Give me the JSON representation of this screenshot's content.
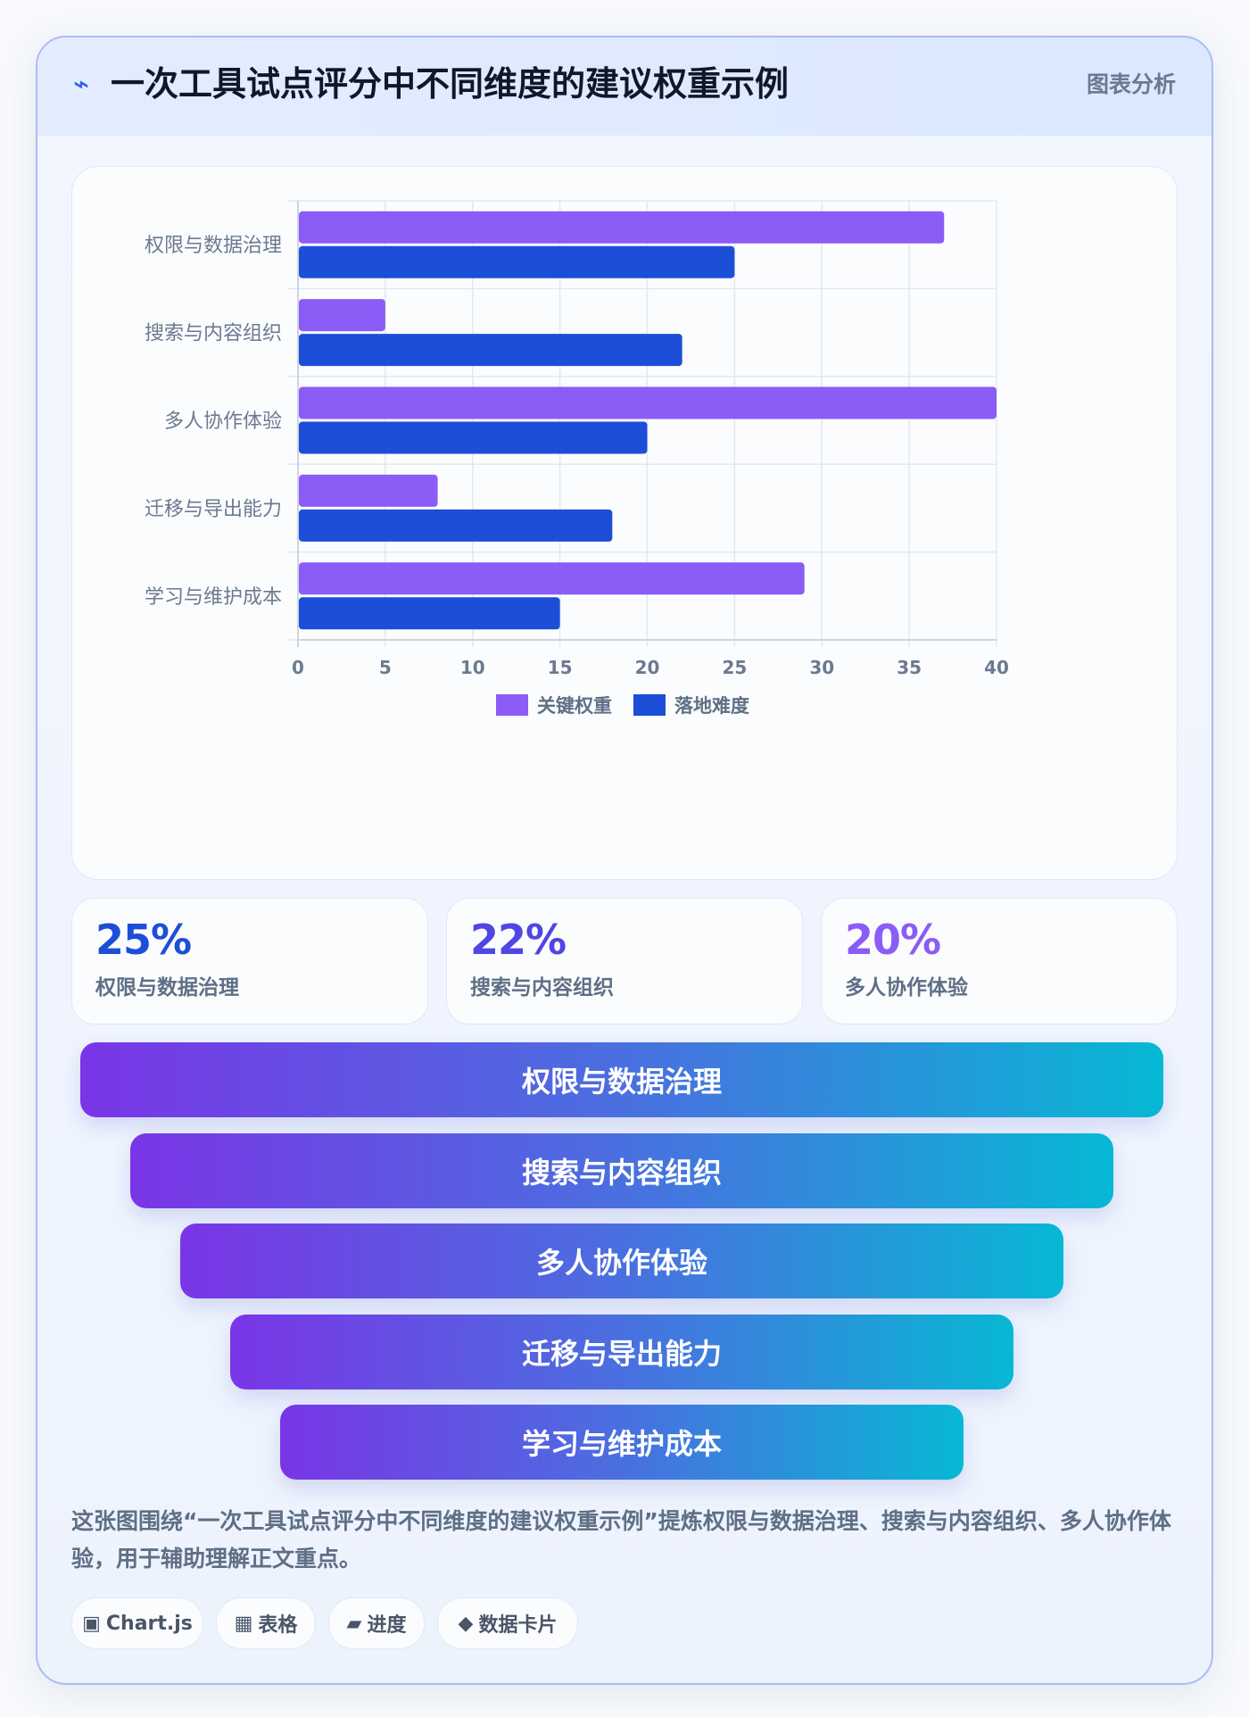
{
  "header": {
    "icon": "⌁",
    "title": "一次工具试点评分中不同维度的建议权重示例",
    "tag": "图表分析"
  },
  "chart_data": {
    "type": "bar",
    "orientation": "horizontal",
    "categories": [
      "权限与数据治理",
      "搜索与内容组织",
      "多人协作体验",
      "迁移与导出能力",
      "学习与维护成本"
    ],
    "series": [
      {
        "name": "关键权重",
        "values": [
          37,
          5,
          40,
          8,
          29
        ],
        "color": "#8b5cf6"
      },
      {
        "name": "落地难度",
        "values": [
          25,
          22,
          20,
          18,
          15
        ],
        "color": "#1d4ed8"
      }
    ],
    "xlim": [
      0,
      40
    ],
    "xticks": [
      0,
      5,
      10,
      15,
      20,
      25,
      30,
      35,
      40
    ],
    "grid": true,
    "legend": "bottom"
  },
  "stats": [
    {
      "value": "25%",
      "label": "权限与数据治理",
      "color": "#1d4ed8"
    },
    {
      "value": "22%",
      "label": "搜索与内容组织",
      "color": "#4f46e5"
    },
    {
      "value": "20%",
      "label": "多人协作体验",
      "color": "#8b5cf6"
    }
  ],
  "funnel": [
    "权限与数据治理",
    "搜索与内容组织",
    "多人协作体验",
    "迁移与导出能力",
    "学习与维护成本"
  ],
  "description": "这张图围绕“一次工具试点评分中不同维度的建议权重示例”提炼权限与数据治理、搜索与内容组织、多人协作体验，用于辅助理解正文重点。",
  "chips": [
    {
      "icon": "▣",
      "label": "Chart.js"
    },
    {
      "icon": "▦",
      "label": "表格"
    },
    {
      "icon": "▰",
      "label": "进度"
    },
    {
      "icon": "◆",
      "label": "数据卡片"
    }
  ]
}
